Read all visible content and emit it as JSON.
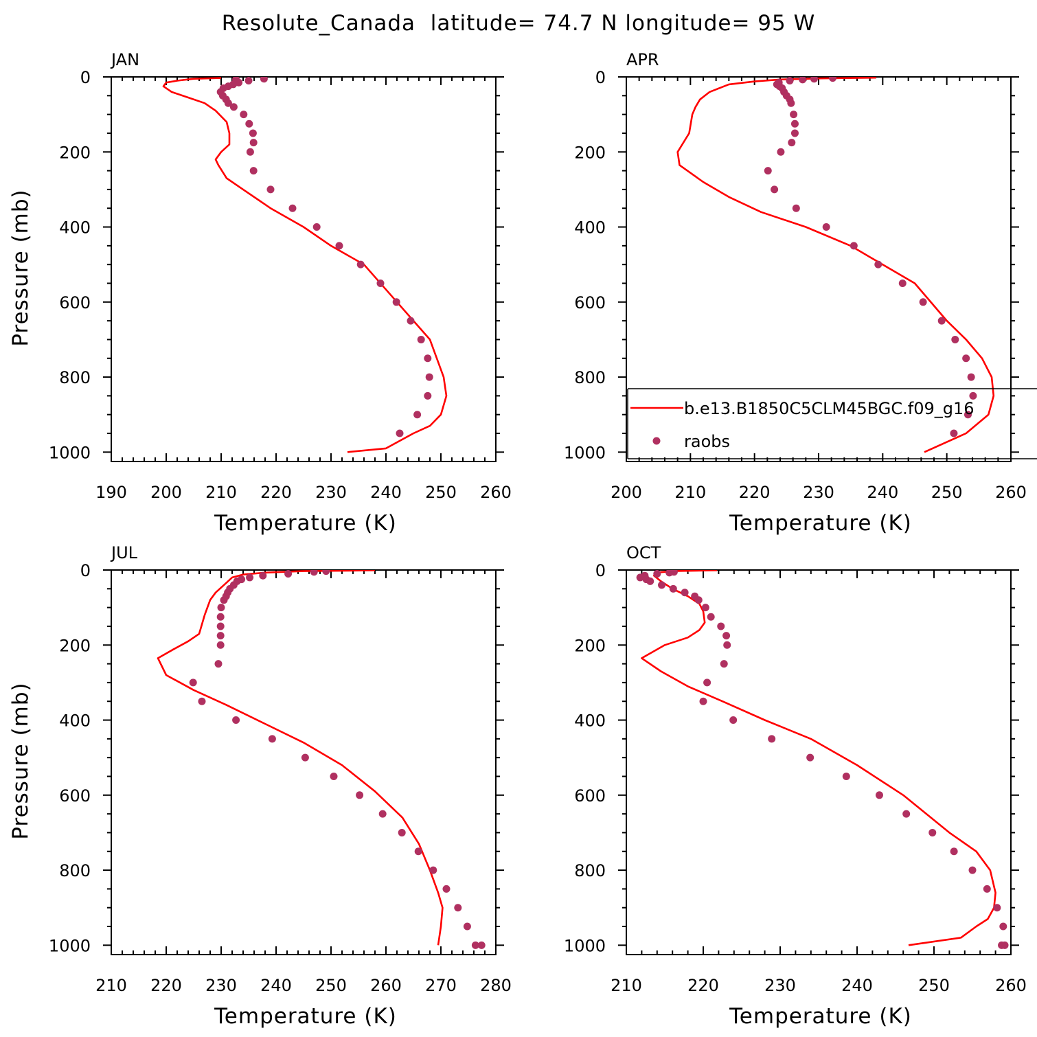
{
  "figure": {
    "title": "Resolute_Canada  latitude= 74.7 N longitude= 95 W"
  },
  "chart_data": [
    {
      "type": "line",
      "panel": "JAN",
      "xlabel": "Temperature (K)",
      "ylabel": "Pressure (mb)",
      "xlim": [
        190,
        260
      ],
      "ylim": [
        0,
        1025
      ],
      "y_inverted": true,
      "xticks": [
        190,
        200,
        210,
        220,
        230,
        240,
        250,
        260
      ],
      "yticks": [
        0,
        200,
        400,
        600,
        800,
        1000
      ],
      "legend": null,
      "series": [
        {
          "name": "b.e13.B1850C5CLM45BGC.f09_g16",
          "style": "line",
          "x": [
            210,
            205,
            202,
            200,
            199.5,
            201,
            204,
            207,
            209,
            211,
            211.5,
            211.5,
            210,
            209,
            209.5,
            211,
            214,
            219,
            225,
            230,
            236,
            242,
            245,
            248,
            250.5,
            251,
            250,
            248,
            245,
            240,
            233
          ],
          "y": [
            3,
            5,
            10,
            15,
            25,
            40,
            55,
            70,
            90,
            120,
            150,
            180,
            200,
            220,
            235,
            270,
            300,
            350,
            400,
            450,
            500,
            600,
            650,
            700,
            800,
            850,
            900,
            930,
            950,
            990,
            1000
          ]
        },
        {
          "name": "raobs",
          "style": "points",
          "x": [
            217.8,
            212.7,
            215.0,
            213.2,
            212.2,
            211.3,
            210.4,
            209.9,
            210.3,
            210.9,
            211.3,
            212.3,
            214.1,
            215.1,
            215.8,
            215.9,
            215.3,
            215.9,
            219.0,
            223.0,
            227.4,
            231.5,
            235.4,
            239.0,
            241.9,
            244.5,
            246.4,
            247.6,
            247.9,
            247.6,
            245.7,
            242.5
          ],
          "y": [
            5,
            7,
            10,
            15,
            20,
            25,
            30,
            40,
            50,
            60,
            70,
            80,
            100,
            125,
            150,
            175,
            200,
            250,
            300,
            350,
            400,
            450,
            500,
            550,
            600,
            650,
            700,
            750,
            800,
            850,
            900,
            950
          ]
        }
      ]
    },
    {
      "type": "line",
      "panel": "APR",
      "xlabel": "Temperature (K)",
      "ylabel": "",
      "xlim": [
        200,
        260
      ],
      "ylim": [
        0,
        1025
      ],
      "y_inverted": true,
      "xticks": [
        200,
        210,
        220,
        230,
        240,
        250,
        260
      ],
      "yticks": [
        0,
        200,
        400,
        600,
        800,
        1000
      ],
      "legend": {
        "location": "lower center, extends past right edge",
        "entries": [
          {
            "label": "b.e13.B1850C5CLM45BGC.f09_g16",
            "style": "line"
          },
          {
            "label": "raobs",
            "style": "points"
          }
        ]
      },
      "series": [
        {
          "name": "b.e13.B1850C5CLM45BGC.f09_g16",
          "style": "line",
          "x": [
            239,
            230,
            224,
            220,
            216,
            213,
            211.5,
            210.8,
            210.3,
            209.8,
            208,
            208.3,
            212,
            216,
            221,
            228,
            235,
            240,
            245,
            250,
            253,
            255.5,
            257,
            257.3,
            256.5,
            253,
            246.5
          ],
          "y": [
            2,
            4,
            7,
            12,
            20,
            40,
            60,
            80,
            100,
            150,
            200,
            235,
            280,
            320,
            360,
            400,
            450,
            500,
            550,
            650,
            700,
            750,
            800,
            850,
            900,
            950,
            1000
          ]
        },
        {
          "name": "raobs",
          "style": "points",
          "x": [
            232.2,
            229.3,
            227.5,
            225.5,
            223.8,
            223.5,
            223.9,
            224.3,
            224.6,
            225.0,
            225.5,
            225.7,
            226.1,
            226.3,
            226.3,
            225.8,
            224.1,
            222.1,
            223.1,
            226.5,
            231.2,
            235.5,
            239.3,
            243.1,
            246.3,
            249.2,
            251.3,
            253.0,
            253.8,
            254.1,
            253.3,
            251.1
          ],
          "y": [
            3,
            5,
            7,
            10,
            15,
            20,
            25,
            30,
            40,
            50,
            60,
            70,
            100,
            125,
            150,
            175,
            200,
            250,
            300,
            350,
            400,
            450,
            500,
            550,
            600,
            650,
            700,
            750,
            800,
            850,
            900,
            950
          ]
        }
      ]
    },
    {
      "type": "line",
      "panel": "JUL",
      "xlabel": "Temperature (K)",
      "ylabel": "Pressure (mb)",
      "xlim": [
        210,
        280
      ],
      "ylim": [
        0,
        1025
      ],
      "y_inverted": true,
      "xticks": [
        210,
        220,
        230,
        240,
        250,
        260,
        270,
        280
      ],
      "yticks": [
        0,
        200,
        400,
        600,
        800,
        1000
      ],
      "legend": null,
      "series": [
        {
          "name": "b.e13.B1850C5CLM45BGC.f09_g16",
          "style": "line",
          "x": [
            258,
            245,
            238,
            234,
            232,
            230.5,
            229,
            228,
            227,
            226,
            224,
            221.5,
            218.5,
            220,
            225,
            231,
            238,
            245,
            252,
            258,
            263,
            266,
            268,
            269.5,
            270.3,
            270,
            269.5
          ],
          "y": [
            1,
            3,
            7,
            12,
            20,
            40,
            60,
            80,
            120,
            170,
            190,
            210,
            235,
            280,
            320,
            360,
            410,
            460,
            520,
            590,
            660,
            730,
            800,
            860,
            900,
            950,
            1000
          ]
        },
        {
          "name": "raobs",
          "style": "points",
          "x": [
            249.1,
            246.9,
            242.2,
            237.6,
            235.2,
            233.7,
            232.9,
            232.3,
            231.6,
            231.2,
            230.9,
            230.5,
            230.0,
            229.9,
            229.9,
            229.9,
            229.9,
            229.5,
            224.9,
            226.5,
            232.7,
            239.3,
            245.3,
            250.5,
            255.2,
            259.4,
            262.9,
            265.9,
            268.6,
            271.0,
            273.1,
            274.8,
            276.3,
            277.4
          ],
          "y": [
            3,
            5,
            10,
            15,
            20,
            25,
            30,
            40,
            50,
            60,
            70,
            80,
            100,
            125,
            150,
            175,
            200,
            250,
            300,
            350,
            400,
            450,
            500,
            550,
            600,
            650,
            700,
            750,
            800,
            850,
            900,
            950,
            1000,
            1000
          ]
        }
      ]
    },
    {
      "type": "line",
      "panel": "OCT",
      "xlabel": "Temperature (K)",
      "ylabel": "",
      "xlim": [
        210,
        260
      ],
      "ylim": [
        0,
        1025
      ],
      "y_inverted": true,
      "xticks": [
        210,
        220,
        230,
        240,
        250,
        260
      ],
      "yticks": [
        0,
        200,
        400,
        600,
        800,
        1000
      ],
      "legend": null,
      "series": [
        {
          "name": "b.e13.B1850C5CLM45BGC.f09_g16",
          "style": "line",
          "x": [
            221.8,
            216,
            214,
            213.6,
            214.5,
            216,
            218,
            219.5,
            220,
            220.2,
            219.5,
            218,
            215,
            212,
            214.5,
            218,
            222.5,
            228,
            234,
            240,
            246,
            252,
            255.5,
            257.3,
            258,
            257.8,
            257,
            255.5,
            253.5,
            246.7
          ],
          "y": [
            1,
            3,
            7,
            15,
            30,
            50,
            70,
            90,
            110,
            140,
            160,
            180,
            200,
            235,
            270,
            310,
            350,
            400,
            450,
            520,
            600,
            700,
            750,
            800,
            860,
            900,
            930,
            950,
            980,
            1000
          ]
        },
        {
          "name": "raobs",
          "style": "points",
          "x": [
            216.2,
            215.6,
            214.0,
            212.4,
            211.8,
            212.6,
            213.1,
            214.6,
            216.1,
            217.6,
            218.9,
            219.4,
            220.3,
            221.0,
            222.3,
            223.0,
            223.1,
            222.7,
            220.5,
            220.0,
            223.9,
            228.9,
            233.9,
            238.6,
            242.9,
            246.4,
            249.8,
            252.6,
            255.0,
            256.9,
            258.2,
            259.0,
            259.2,
            258.8
          ],
          "y": [
            5,
            7,
            10,
            15,
            20,
            25,
            30,
            40,
            50,
            60,
            70,
            80,
            100,
            125,
            150,
            175,
            200,
            250,
            300,
            350,
            400,
            450,
            500,
            550,
            600,
            650,
            700,
            750,
            800,
            850,
            900,
            950,
            1000,
            1000
          ]
        }
      ]
    }
  ]
}
